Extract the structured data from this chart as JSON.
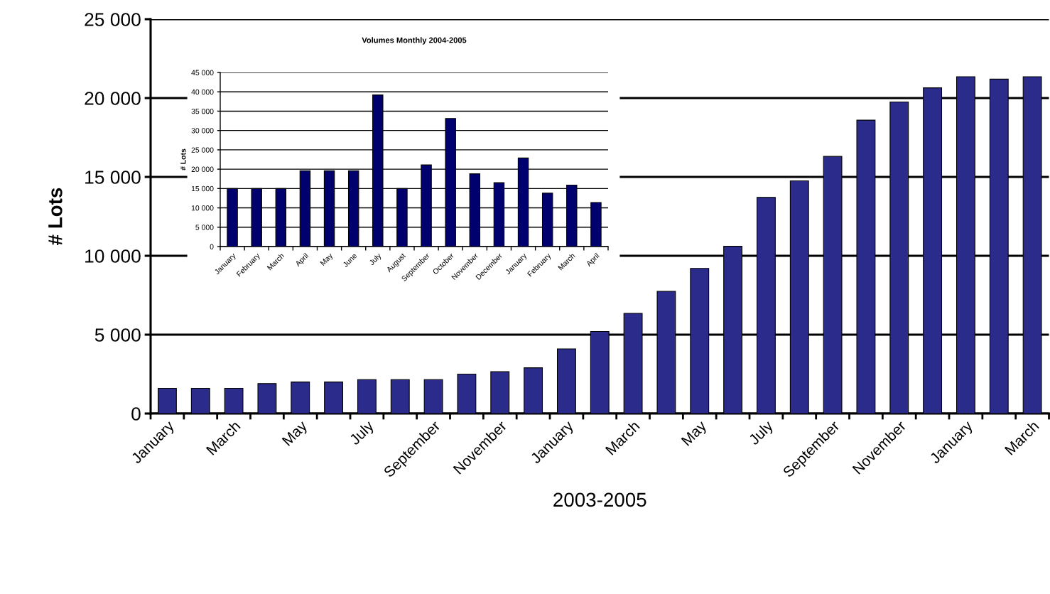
{
  "chart_data": [
    {
      "type": "bar",
      "xlabel": "2003-2005",
      "ylabel": "# Lots",
      "categories": [
        "January",
        null,
        "March",
        null,
        "May",
        null,
        "July",
        null,
        "September",
        null,
        "November",
        null,
        "January",
        null,
        "March",
        null,
        "May",
        null,
        "July",
        null,
        "September",
        null,
        "November",
        null,
        "January",
        null,
        "March"
      ],
      "values": [
        1600,
        1600,
        1600,
        1900,
        2000,
        2000,
        2150,
        2150,
        2150,
        2500,
        2650,
        2900,
        4100,
        5200,
        6350,
        7750,
        9200,
        10600,
        13700,
        14750,
        16300,
        18600,
        19750,
        20650,
        21350,
        21200,
        21350
      ],
      "color": "#2b2b8c",
      "ylim": [
        0,
        25000
      ],
      "yticks": [
        0,
        {
          "value": 5000,
          "label": "5 000"
        },
        {
          "value": 10000,
          "label": "10 000"
        },
        {
          "value": 15000,
          "label": "15 000"
        },
        {
          "value": 20000,
          "label": "20 000"
        },
        {
          "value": 25000,
          "label": "25 000"
        }
      ],
      "grid": "y"
    },
    {
      "type": "bar",
      "title": "Volumes Monthly 2004-2005",
      "ylabel": "# Lots",
      "categories": [
        "January",
        "February",
        "March",
        "April",
        "May",
        "June",
        "July",
        "August",
        "September",
        "October",
        "November",
        "December",
        "January",
        "February",
        "March",
        "April"
      ],
      "values": [
        15000,
        15000,
        15000,
        19600,
        19600,
        19600,
        39200,
        15000,
        21100,
        33100,
        18800,
        16500,
        22900,
        13800,
        15900,
        11400
      ],
      "color": "#00006e",
      "ylim": [
        0,
        45000
      ],
      "yticks": [
        0,
        {
          "value": 5000,
          "label": "5 000"
        },
        {
          "value": 10000,
          "label": "10 000"
        },
        {
          "value": 15000,
          "label": "15 000"
        },
        {
          "value": 20000,
          "label": "20 000"
        },
        {
          "value": 25000,
          "label": "25 000"
        },
        {
          "value": 30000,
          "label": "30 000"
        },
        {
          "value": 35000,
          "label": "35 000"
        },
        {
          "value": 40000,
          "label": "40 000"
        },
        {
          "value": 45000,
          "label": "45 000"
        }
      ],
      "grid": "y"
    }
  ]
}
